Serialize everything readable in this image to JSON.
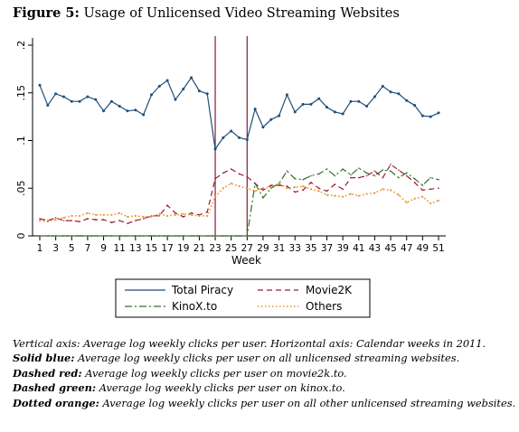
{
  "figure": {
    "label": "Figure 5:",
    "title": "Usage of Unlicensed Video Streaming Websites"
  },
  "notes": [
    {
      "label": "",
      "text": "Vertical axis: Average log weekly clicks per user. Horizontal axis: Calendar weeks in 2011."
    },
    {
      "label": "Solid blue:",
      "text": "Average log weekly clicks per user on all unlicensed streaming websites."
    },
    {
      "label": "Dashed red:",
      "text": "Average log weekly clicks per user on movie2k.to."
    },
    {
      "label": "Dashed green:",
      "text": "Average log weekly clicks per user on kinox.to."
    },
    {
      "label": "Dotted orange:",
      "text": "Average log weekly clicks per user on all other unlicensed streaming websites."
    }
  ],
  "chart_data": {
    "type": "line",
    "xlabel": "Week",
    "ylabel": "",
    "xlim": [
      1,
      51
    ],
    "ylim": [
      0,
      0.2
    ],
    "yticks": [
      0,
      0.05,
      0.1,
      0.15,
      0.2
    ],
    "ytick_labels": [
      "0",
      ".05",
      ".1",
      ".15",
      ".2"
    ],
    "xticks": [
      1,
      3,
      5,
      7,
      9,
      11,
      13,
      15,
      17,
      19,
      21,
      23,
      25,
      27,
      29,
      31,
      33,
      35,
      37,
      39,
      41,
      43,
      45,
      47,
      49,
      51
    ],
    "vertical_lines": [
      23,
      27
    ],
    "grid": false,
    "legend_position": "bottom",
    "x": [
      1,
      2,
      3,
      4,
      5,
      6,
      7,
      8,
      9,
      10,
      11,
      12,
      13,
      14,
      15,
      16,
      17,
      18,
      19,
      20,
      21,
      22,
      23,
      24,
      25,
      26,
      27,
      28,
      29,
      30,
      31,
      32,
      33,
      34,
      35,
      36,
      37,
      38,
      39,
      40,
      41,
      42,
      43,
      44,
      45,
      46,
      47,
      48,
      49,
      50,
      51
    ],
    "series": [
      {
        "name": "Total Piracy",
        "color": "#1f4e79",
        "style": "solid-marker",
        "values": [
          0.158,
          0.137,
          0.149,
          0.146,
          0.141,
          0.141,
          0.146,
          0.143,
          0.131,
          0.141,
          0.136,
          0.131,
          0.132,
          0.127,
          0.148,
          0.157,
          0.163,
          0.143,
          0.154,
          0.166,
          0.152,
          0.149,
          0.091,
          0.103,
          0.11,
          0.103,
          0.101,
          0.133,
          0.114,
          0.122,
          0.126,
          0.148,
          0.13,
          0.138,
          0.138,
          0.144,
          0.135,
          0.13,
          0.128,
          0.141,
          0.141,
          0.136,
          0.146,
          0.157,
          0.151,
          0.149,
          0.142,
          0.137,
          0.126,
          0.125,
          0.129
        ]
      },
      {
        "name": "Movie2K",
        "color": "#9b1c31",
        "style": "dashed",
        "values": [
          0.018,
          0.016,
          0.019,
          0.016,
          0.016,
          0.015,
          0.018,
          0.017,
          0.017,
          0.014,
          0.016,
          0.013,
          0.016,
          0.018,
          0.021,
          0.021,
          0.032,
          0.024,
          0.02,
          0.024,
          0.022,
          0.025,
          0.06,
          0.066,
          0.07,
          0.065,
          0.062,
          0.055,
          0.048,
          0.053,
          0.053,
          0.052,
          0.046,
          0.048,
          0.056,
          0.05,
          0.047,
          0.054,
          0.049,
          0.061,
          0.061,
          0.063,
          0.068,
          0.061,
          0.075,
          0.069,
          0.063,
          0.056,
          0.048,
          0.049,
          0.05
        ]
      },
      {
        "name": "KinoX.to",
        "color": "#3a6e2c",
        "style": "dashdot",
        "values": [
          0,
          0,
          0,
          0,
          0,
          0,
          0,
          0,
          0,
          0,
          0,
          0,
          0,
          0,
          0,
          0,
          0,
          0,
          0,
          0,
          0,
          0,
          0,
          0,
          0,
          0,
          0,
          0.055,
          0.04,
          0.05,
          0.055,
          0.068,
          0.06,
          0.059,
          0.063,
          0.065,
          0.07,
          0.063,
          0.07,
          0.064,
          0.071,
          0.066,
          0.063,
          0.069,
          0.068,
          0.061,
          0.066,
          0.06,
          0.053,
          0.061,
          0.059
        ]
      },
      {
        "name": "Others",
        "color": "#e8902a",
        "style": "dotted",
        "values": [
          0.016,
          0.015,
          0.017,
          0.019,
          0.021,
          0.021,
          0.024,
          0.022,
          0.022,
          0.022,
          0.024,
          0.02,
          0.021,
          0.02,
          0.02,
          0.023,
          0.021,
          0.022,
          0.023,
          0.022,
          0.021,
          0.021,
          0.041,
          0.05,
          0.055,
          0.052,
          0.05,
          0.047,
          0.05,
          0.051,
          0.055,
          0.05,
          0.051,
          0.052,
          0.049,
          0.047,
          0.043,
          0.042,
          0.041,
          0.044,
          0.042,
          0.044,
          0.045,
          0.049,
          0.048,
          0.043,
          0.035,
          0.039,
          0.041,
          0.034,
          0.037
        ]
      }
    ]
  }
}
